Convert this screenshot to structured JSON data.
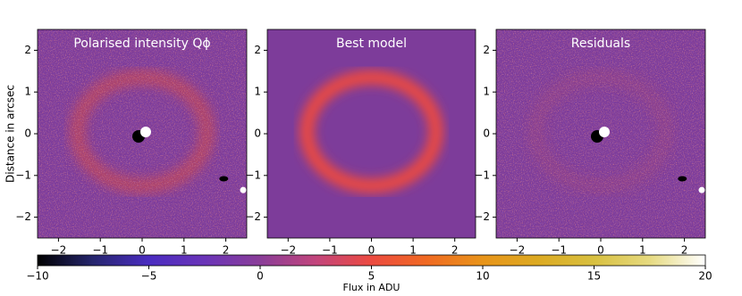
{
  "chart_data": [
    {
      "type": "image",
      "title": "Polarised intensity Qϕ",
      "ylabel": "Distance in arcsec",
      "xlim": [
        -2.5,
        2.5
      ],
      "ylim": [
        -2.5,
        2.5
      ],
      "xticks": [
        {
          "value": -2,
          "label": "−2"
        },
        {
          "value": -1,
          "label": "−1"
        },
        0,
        1,
        2
      ],
      "yticks": [
        {
          "value": -2,
          "label": "−2"
        },
        {
          "value": -1,
          "label": "−1"
        },
        0,
        1,
        2
      ]
    },
    {
      "type": "image",
      "title": "Best model",
      "xlim": [
        -2.5,
        2.5
      ],
      "ylim": [
        -2.5,
        2.5
      ],
      "xticks": [
        {
          "value": -2,
          "label": "−2"
        },
        {
          "value": -1,
          "label": "−1"
        },
        0,
        1,
        2
      ],
      "yticks": [
        {
          "value": -2,
          "label": "−2"
        },
        {
          "value": -1,
          "label": "−1"
        },
        0,
        1,
        2
      ]
    },
    {
      "type": "image",
      "title": "Residuals",
      "xlim": [
        -2.5,
        2.5
      ],
      "ylim": [
        -2.5,
        2.5
      ],
      "xticks": [
        {
          "value": -2,
          "label": "−2"
        },
        {
          "value": -1,
          "label": "−1"
        },
        0,
        1,
        2
      ],
      "yticks": [
        {
          "value": -2,
          "label": "−2"
        },
        {
          "value": -1,
          "label": "−1"
        },
        0,
        1,
        2
      ]
    },
    {
      "type": "colorbar",
      "xlabel": "Flux in ADU",
      "xlim": [
        -10,
        20
      ],
      "xticks": [
        {
          "value": -10,
          "label": "−10"
        },
        {
          "value": -5,
          "label": "−5"
        },
        0,
        5,
        10,
        15,
        20
      ],
      "colors": [
        "#000000",
        "#26266e",
        "#4a2cc0",
        "#6a34b8",
        "#8a3d98",
        "#c2457c",
        "#ec4a40",
        "#f06a22",
        "#e8941a",
        "#dcaa22",
        "#d8c040",
        "#e6da80",
        "#ffffff"
      ]
    }
  ]
}
